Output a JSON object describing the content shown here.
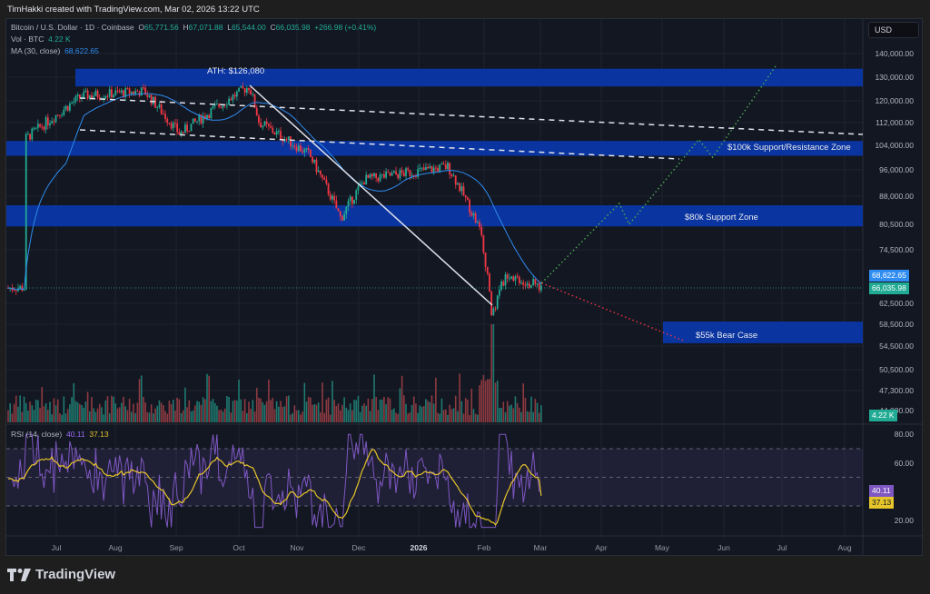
{
  "credit": "TimHakki created with TradingView.com, Mar 02, 2026 13:22 UTC",
  "legend": {
    "symbol": "Bitcoin / U.S. Dollar · 1D · Coinbase",
    "o_label": "O",
    "o": "65,771.56",
    "h_label": "H",
    "h": "67,071.88",
    "l_label": "L",
    "l": "65,544.00",
    "c_label": "C",
    "c": "66,035.98",
    "change": "+266.98 (+0.41%)",
    "vol_label": "Vol · BTC",
    "vol": "4.22 K",
    "ma_label": "MA (30, close)",
    "ma": "68,622.65",
    "rsi_label": "RSI (14, close)",
    "rsi": "40.11",
    "rsi_ma": "37.13"
  },
  "currency_button": "USD",
  "price_axis": [
    "140,000.00",
    "130,000.00",
    "120,000.00",
    "112,000.00",
    "104,000.00",
    "96,000.00",
    "88,000.00",
    "80,500.00",
    "74,500.00",
    "62,500.00",
    "58,500.00",
    "54,500.00",
    "50,500.00",
    "47,300.00",
    "44,000.00"
  ],
  "price_tags": {
    "ma": "68,622.65",
    "close": "66,035.98",
    "volume": "4.22 K"
  },
  "rsi_axis": [
    "80.00",
    "60.00",
    "20.00"
  ],
  "rsi_tags": {
    "rsi": "40.11",
    "rsi_ma": "37.13"
  },
  "time_axis": [
    "Jul",
    "Aug",
    "Sep",
    "Oct",
    "Nov",
    "Dec",
    "2026",
    "Feb",
    "Mar",
    "Apr",
    "May",
    "Jun",
    "Jul",
    "Aug"
  ],
  "zones": {
    "ath": "ATH: $126,080",
    "z100k": "$100k Support/Resistance Zone",
    "z80k": "$80k Support Zone",
    "z55k": "$55k Bear Case"
  },
  "colors": {
    "up": "#22ab94",
    "down": "#f23645",
    "ma": "#2f8cf0",
    "rsi": "#7e57c2",
    "rsi_ma": "#e6c52a",
    "zone": "#0a36a8",
    "bg": "#131722"
  },
  "brand": "TradingView",
  "chart_data": {
    "type": "candlestick",
    "title": "Bitcoin / U.S. Dollar · 1D · Coinbase",
    "x_range": [
      "2025-06-15",
      "2026-08-25"
    ],
    "y_scale": "log",
    "ylim": [
      44000,
      145000
    ],
    "key_points": [
      {
        "date": "2025-06-15",
        "price": 106000
      },
      {
        "date": "2025-07-14",
        "price": 122000
      },
      {
        "date": "2025-08-14",
        "price": 124000
      },
      {
        "date": "2025-09-01",
        "price": 108000
      },
      {
        "date": "2025-10-06",
        "price": 126080
      },
      {
        "date": "2025-10-11",
        "price": 112000
      },
      {
        "date": "2025-11-05",
        "price": 101000
      },
      {
        "date": "2025-11-21",
        "price": 82000
      },
      {
        "date": "2025-12-03",
        "price": 93000
      },
      {
        "date": "2026-01-14",
        "price": 97000
      },
      {
        "date": "2026-01-31",
        "price": 78000
      },
      {
        "date": "2026-02-05",
        "price": 60000
      },
      {
        "date": "2026-02-12",
        "price": 69000
      },
      {
        "date": "2026-03-02",
        "price": 66035.98
      }
    ],
    "ma30_last": 68622.65,
    "zones": [
      {
        "label": "ATH: $126,080",
        "low": 126000,
        "high": 133500
      },
      {
        "label": "$100k Support/Resistance Zone",
        "low": 100500,
        "high": 105500
      },
      {
        "label": "$80k Support Zone",
        "low": 80000,
        "high": 85500
      },
      {
        "label": "$55k Bear Case",
        "low": 55000,
        "high": 59000
      }
    ],
    "projections": [
      {
        "name": "bull",
        "color": "green",
        "path": [
          [
            "2026-03-02",
            67000
          ],
          [
            "2026-04-10",
            86000
          ],
          [
            "2026-04-15",
            80500
          ],
          [
            "2026-05-20",
            106000
          ],
          [
            "2026-05-27",
            100000
          ],
          [
            "2026-06-28",
            135000
          ]
        ]
      },
      {
        "name": "bear",
        "color": "red",
        "path": [
          [
            "2026-03-02",
            67000
          ],
          [
            "2026-05-12",
            55500
          ]
        ]
      }
    ],
    "rsi": {
      "period": 14,
      "last": 40.11,
      "ma_last": 37.13,
      "levels": [
        70,
        50,
        30
      ],
      "ylim": [
        10,
        85
      ]
    },
    "volume_last": "4.22K"
  }
}
